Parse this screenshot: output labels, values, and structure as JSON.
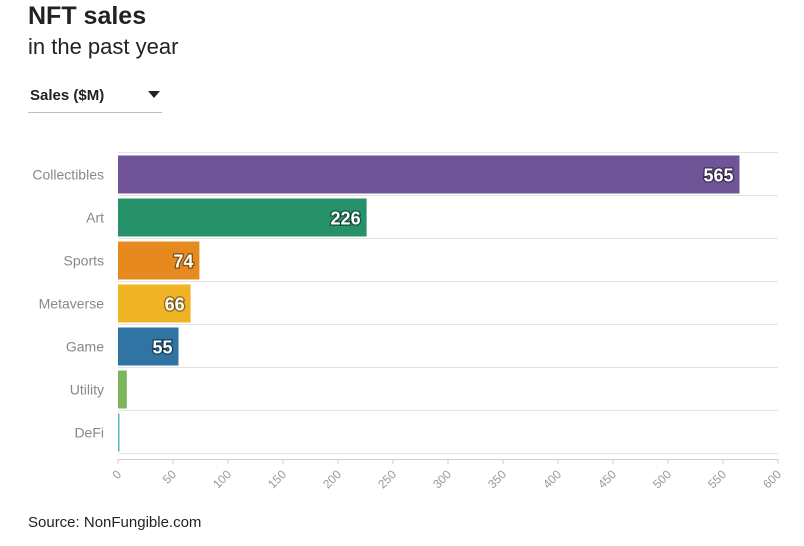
{
  "title": "NFT sales",
  "subtitle": "in the past year",
  "dropdown": {
    "selected": "Sales ($M)"
  },
  "source": "Source: NonFungible.com",
  "chart_data": {
    "type": "bar",
    "orientation": "horizontal",
    "categories": [
      "Collectibles",
      "Art",
      "Sports",
      "Metaverse",
      "Game",
      "Utility",
      "DeFi"
    ],
    "values": [
      565,
      226,
      74,
      66,
      55,
      8,
      1
    ],
    "value_labels": [
      "565",
      "226",
      "74",
      "66",
      "55",
      "",
      ""
    ],
    "colors": [
      "#6f5497",
      "#27916a",
      "#e68a1f",
      "#f0b323",
      "#2f74a3",
      "#7cb65b",
      "#5cb7b3"
    ],
    "xlim": [
      0,
      600
    ],
    "xticks": [
      0,
      50,
      100,
      150,
      200,
      250,
      300,
      350,
      400,
      450,
      500,
      550,
      600
    ],
    "grid": true
  }
}
